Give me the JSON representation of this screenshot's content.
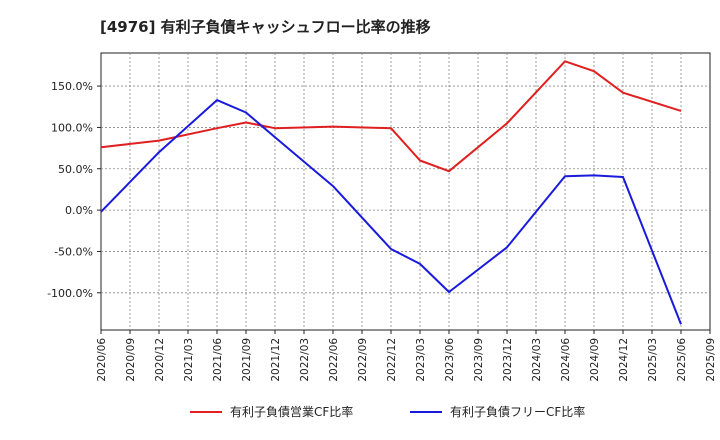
{
  "chart_data": {
    "type": "line",
    "title": "[4976]  有利子負債キャッシュフロー比率の推移",
    "xlabel": "",
    "ylabel": "",
    "x": [
      "2020/06",
      "2020/09",
      "2020/12",
      "2021/03",
      "2021/06",
      "2021/09",
      "2021/12",
      "2022/03",
      "2022/06",
      "2022/09",
      "2022/12",
      "2023/03",
      "2023/06",
      "2023/09",
      "2023/12",
      "2024/03",
      "2024/06",
      "2024/09",
      "2024/12",
      "2025/03",
      "2025/06",
      "2025/09"
    ],
    "yticks": [
      "150.0%",
      "100.0%",
      "50.0%",
      "0.0%",
      "-50.0%",
      "-100.0%"
    ],
    "ytick_values": [
      150,
      100,
      50,
      0,
      -50,
      -100
    ],
    "ylim": [
      -145,
      190
    ],
    "grid": true,
    "legend_position": "bottom",
    "series": [
      {
        "name": "有利子負債営業CF比率",
        "color": "#e02020",
        "values": [
          76,
          null,
          84,
          null,
          99,
          106,
          99,
          null,
          101,
          null,
          99,
          60,
          47,
          null,
          105,
          null,
          180,
          168,
          142,
          null,
          120,
          null
        ]
      },
      {
        "name": "有利子負債フリーCF比率",
        "color": "#1a1adc",
        "values": [
          -2,
          null,
          70,
          null,
          133,
          118,
          88,
          null,
          29,
          null,
          -47,
          -65,
          -99,
          null,
          -45,
          null,
          41,
          42,
          40,
          null,
          -138,
          null
        ]
      }
    ]
  }
}
